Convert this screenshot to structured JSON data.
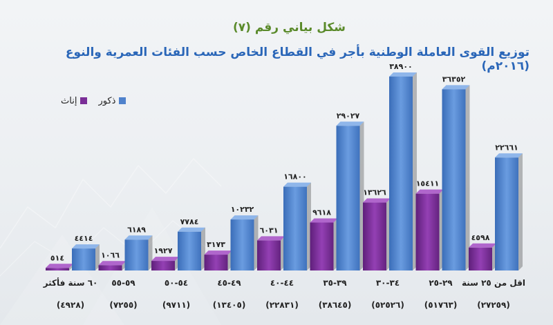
{
  "header": {
    "subtitle": "شكل بياني رقم (٧)",
    "title": "توزيع القوى العاملة الوطنية بأجر في القطاع الخاص حسب الفئات العمرية والنوع (٢٠١٦م)"
  },
  "colors": {
    "male": "#4f82cc",
    "female": "#7a2e97"
  },
  "chart_data": {
    "type": "bar",
    "title": "توزيع القوى العاملة الوطنية بأجر في القطاع الخاص حسب الفئات العمرية والنوع (٢٠١٦م)",
    "legend_position": "top-left",
    "categories": [
      "٦٠ سنة فأكثر",
      "٥٩-٥٥",
      "٥٤-٥٠",
      "٤٩-٤٥",
      "٤٤-٤٠",
      "٣٩-٣٥",
      "٣٤-٣٠",
      "٢٩-٢٥",
      "اقل من ٢٥ سنة"
    ],
    "totals": [
      "(٤٩٢٨)",
      "(٧٢٥٥)",
      "(٩٧١١)",
      "(١٣٤٠٥)",
      "(٢٢٨٣١)",
      "(٣٨٦٤٥)",
      "(٥٢٥٢٦)",
      "(٥١٧٦٣)",
      "(٢٧٢٥٩)"
    ],
    "series": [
      {
        "name": "ذكور",
        "values": [
          4414,
          6189,
          7784,
          10232,
          16800,
          29027,
          38900,
          36352,
          22661
        ],
        "labels": [
          "٤٤١٤",
          "٦١٨٩",
          "٧٧٨٤",
          "١٠٢٣٢",
          "١٦٨٠٠",
          "٢٩٠٢٧",
          "٣٨٩٠٠",
          "٣٦٣٥٢",
          "٢٢٦٦١"
        ]
      },
      {
        "name": "إناث",
        "values": [
          514,
          1066,
          1927,
          3173,
          6031,
          9618,
          13626,
          15411,
          4598
        ],
        "labels": [
          "٥١٤",
          "١٠٦٦",
          "١٩٢٧",
          "٣١٧٣",
          "٦٠٣١",
          "٩٦١٨",
          "١٣٦٢٦",
          "١٥٤١١",
          "٤٥٩٨"
        ]
      }
    ],
    "ylim": [
      0,
      40000
    ],
    "grid": false
  }
}
